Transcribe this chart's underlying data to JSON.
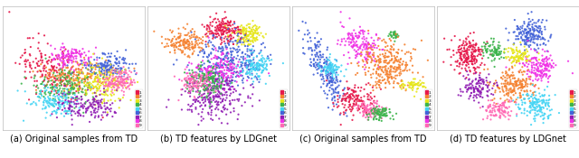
{
  "subtitles": [
    "(a) Original samples from TD",
    "(b) TD features by LDGnet",
    "(c) Original samples from TD",
    "(d) TD features by LDGnet"
  ],
  "subtitle_fontsize": 7.0,
  "n_classes": 9,
  "class_colors": [
    "#e6194b",
    "#f58231",
    "#e6e619",
    "#3cb44b",
    "#42d4f4",
    "#4363d8",
    "#911eb4",
    "#f032e6",
    "#ff69b4"
  ],
  "legend_labels": [
    "1",
    "2",
    "3",
    "4",
    "5",
    "6",
    "7",
    "8",
    "9"
  ],
  "background": "#ffffff",
  "grid_color": "#e0e0e0",
  "spine_color": "#aaaaaa"
}
